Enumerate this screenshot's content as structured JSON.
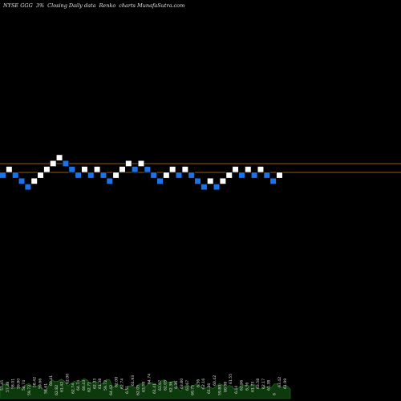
{
  "header": {
    "ticker": "NYSE GGG",
    "change": "3%",
    "title_mid": "Closing Daily data",
    "chart_kind": "Renko",
    "site": "charts MunafaSutra.com"
  },
  "colors": {
    "background": "#000000",
    "brick_up": "#ffffff",
    "brick_down": "#1a73e8",
    "brick_border": "#000000",
    "reference_line": "#c8781e",
    "volume_fill": "#0c3a0c",
    "volume_line": "#1f7a1f",
    "label_text": "#e0e0e0"
  },
  "chart_data": {
    "type": "renko",
    "title": "NYSE GGG 3% Closing Daily data Renko charts MunafaSutra.com",
    "brick_levels": [
      0,
      1,
      0,
      -1,
      -2,
      -1,
      0,
      1,
      2,
      3,
      2,
      1,
      0,
      1,
      0,
      1,
      0,
      -1,
      0,
      1,
      2,
      1,
      2,
      1,
      0,
      -1,
      0,
      1,
      0,
      1,
      0,
      -1,
      -2,
      -1,
      -2,
      -1,
      0,
      1,
      0,
      1,
      0,
      1,
      0,
      -1,
      0
    ],
    "brick_directions": [
      "down",
      "up",
      "down",
      "down",
      "down",
      "up",
      "up",
      "up",
      "up",
      "up",
      "down",
      "down",
      "down",
      "up",
      "down",
      "up",
      "down",
      "down",
      "up",
      "up",
      "up",
      "down",
      "up",
      "down",
      "down",
      "down",
      "up",
      "up",
      "down",
      "up",
      "down",
      "down",
      "down",
      "up",
      "down",
      "up",
      "up",
      "up",
      "down",
      "up",
      "down",
      "up",
      "down",
      "down",
      "up"
    ],
    "reference_lines": [
      "upper",
      "lower"
    ],
    "volume_labels": [
      "57.45",
      "57.38",
      "58.01",
      "59.80",
      "58.74",
      "59.72",
      "58.42",
      "59.66",
      "58.61",
      "60.41",
      "62.82",
      "61.42",
      "62.00",
      "62.74",
      "64.74",
      "60.43",
      "62.71",
      "62.33",
      "61.38",
      "59.72",
      "64.42",
      "62.00",
      "62.74",
      "6.51",
      "61.93",
      "62.05",
      "63.58",
      "64.74",
      "61.41",
      "63.07",
      "62.05",
      "62.36",
      "6.36",
      "63.80",
      "61.67",
      "60.75",
      "6.36",
      "62.16",
      "61.36",
      "60.42",
      "59.80",
      "60.88",
      "61.55",
      "6.44",
      "62.96",
      "6.36",
      "61.73",
      "63.58",
      "62.17",
      "61.38",
      "6",
      "63.42",
      "61.99"
    ]
  }
}
